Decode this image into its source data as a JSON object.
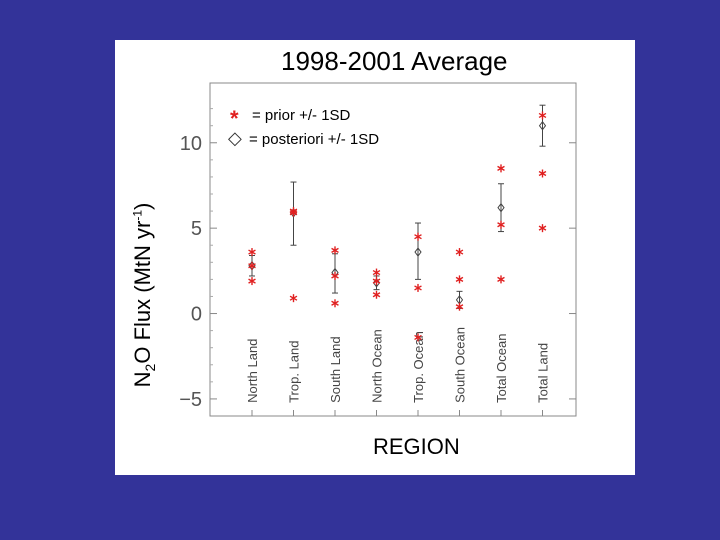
{
  "colors": {
    "slide_background": "#333399",
    "panel_background": "#ffffff",
    "prior_marker": "#e02020",
    "posterior_marker": "#333333"
  },
  "chart_data": {
    "type": "scatter",
    "title": "1998-2001 Average",
    "xlabel": "REGION",
    "ylabel": {
      "main": "N",
      "sub": "2",
      "mid": "O Flux (MtN yr",
      "sup": "-1",
      "end": ")"
    },
    "ylim": [
      -6,
      13.5
    ],
    "yticks": [
      -5,
      0,
      5,
      10
    ],
    "ytick_labels": [
      "−5",
      "0",
      "5",
      "10"
    ],
    "grid": false,
    "legend_position": "top-left",
    "categories": [
      "North Land",
      "Trop. Land",
      "South Land",
      "North Ocean",
      "Trop. Ocean",
      "South Ocean",
      "Total Ocean",
      "Total Land"
    ],
    "series": [
      {
        "name": "prior +/- 1SD",
        "marker": "asterisk",
        "legend_symbol": "*",
        "legend_label": "= prior +/- 1SD",
        "mean": [
          2.8,
          5.9,
          2.2,
          1.9,
          1.5,
          2.0,
          5.2,
          8.2
        ],
        "low": [
          1.9,
          0.9,
          0.6,
          1.1,
          -1.4,
          0.4,
          2.0,
          5.0
        ],
        "high": [
          3.6,
          6.0,
          3.7,
          2.4,
          4.5,
          3.6,
          8.5,
          11.6
        ]
      },
      {
        "name": "posteriori +/- 1SD",
        "marker": "diamond",
        "legend_symbol": "◇",
        "legend_label": "= posteriori +/- 1SD",
        "mean": [
          2.8,
          5.9,
          2.4,
          1.8,
          3.6,
          0.8,
          6.2,
          11.0
        ],
        "low": [
          2.2,
          4.0,
          1.2,
          1.4,
          2.0,
          0.3,
          4.8,
          9.8
        ],
        "high": [
          3.4,
          7.7,
          3.5,
          2.2,
          5.3,
          1.3,
          7.6,
          12.2
        ]
      }
    ]
  }
}
